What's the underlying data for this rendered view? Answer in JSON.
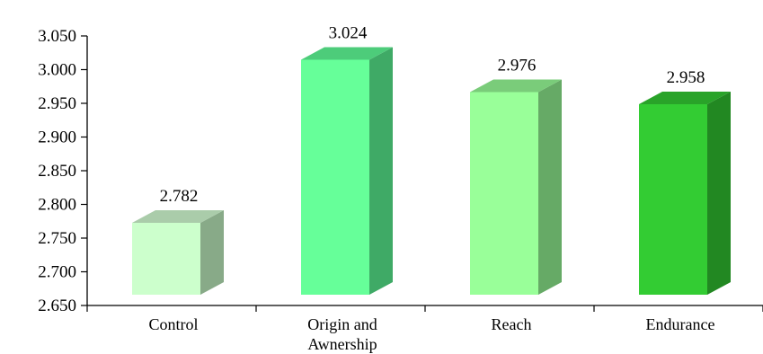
{
  "chart_data": {
    "type": "bar",
    "style": "3d-column",
    "title": "",
    "xlabel": "",
    "ylabel": "",
    "categories": [
      "Control",
      "Origin and Awnership",
      "Reach",
      "Endurance"
    ],
    "category_lines": [
      [
        "Control"
      ],
      [
        "Origin and",
        "Awnership"
      ],
      [
        "Reach"
      ],
      [
        "Endurance"
      ]
    ],
    "values": [
      2.782,
      3.024,
      2.976,
      2.958
    ],
    "data_labels": [
      "2.782",
      "3.024",
      "2.976",
      "2.958"
    ],
    "ylim": [
      2.65,
      3.05
    ],
    "yticks": [
      2.65,
      2.7,
      2.75,
      2.8,
      2.85,
      2.9,
      2.95,
      3.0,
      3.05
    ],
    "ytick_labels": [
      "2.650",
      "2.700",
      "2.750",
      "2.800",
      "2.850",
      "2.900",
      "2.950",
      "3.000",
      "3.050"
    ],
    "grid": false,
    "legend": "none",
    "bar_colors": [
      {
        "front": "#ccffcc",
        "side": "#88aa88",
        "top": "#aaccaa"
      },
      {
        "front": "#66ff99",
        "side": "#3faa66",
        "top": "#4dcc7a"
      },
      {
        "front": "#99ff99",
        "side": "#66aa66",
        "top": "#7acc7a"
      },
      {
        "front": "#33cc33",
        "side": "#228822",
        "top": "#29a329"
      }
    ]
  }
}
